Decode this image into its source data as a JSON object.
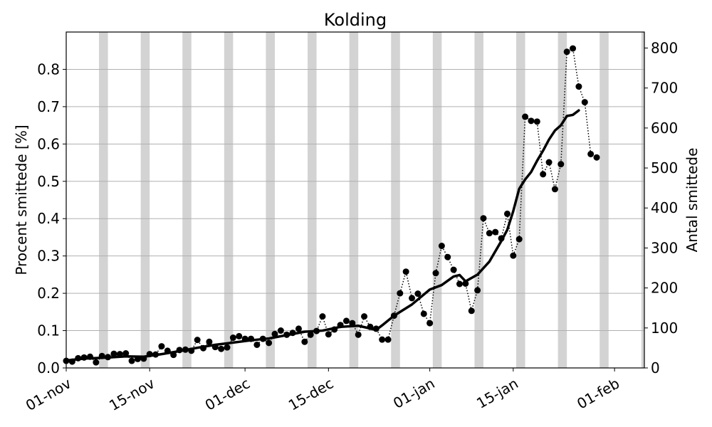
{
  "chart_data": {
    "type": "line",
    "title": "Kolding",
    "ylabel": "Procent smittede [%]",
    "y2label": "Antal smittede",
    "grid": true,
    "weekend_shading": true,
    "colors": {
      "line": "#000000",
      "weekend": "#d3d3d3",
      "grid": "#b0b0b0"
    },
    "x_start": "2020-11-01",
    "x_end": "2021-02-06",
    "ylim": [
      0,
      0.9
    ],
    "y2lim": [
      0,
      840
    ],
    "yticks": [
      "0.0",
      "0.1",
      "0.2",
      "0.3",
      "0.4",
      "0.5",
      "0.6",
      "0.7",
      "0.8"
    ],
    "y2ticks": [
      "0",
      "100",
      "200",
      "300",
      "400",
      "500",
      "600",
      "700",
      "800"
    ],
    "xticks": [
      {
        "date": "2020-11-01",
        "label": "01-nov"
      },
      {
        "date": "2020-11-15",
        "label": "15-nov"
      },
      {
        "date": "2020-12-01",
        "label": "01-dec"
      },
      {
        "date": "2020-12-15",
        "label": "15-dec"
      },
      {
        "date": "2021-01-01",
        "label": "01-jan"
      },
      {
        "date": "2021-01-15",
        "label": "15-jan"
      },
      {
        "date": "2021-02-01",
        "label": "01-feb"
      }
    ],
    "weekends": [
      "2020-11-07",
      "2020-11-14",
      "2020-11-21",
      "2020-11-28",
      "2020-12-05",
      "2020-12-12",
      "2020-12-19",
      "2020-12-26",
      "2021-01-02",
      "2021-01-09",
      "2021-01-16",
      "2021-01-23",
      "2021-01-30",
      "2021-02-06"
    ],
    "series": [
      {
        "style": "dotted-markers",
        "points": [
          [
            "2020-11-01",
            0.019
          ],
          [
            "2020-11-02",
            0.017
          ],
          [
            "2020-11-03",
            0.026
          ],
          [
            "2020-11-04",
            0.028
          ],
          [
            "2020-11-05",
            0.03
          ],
          [
            "2020-11-06",
            0.015
          ],
          [
            "2020-11-07",
            0.032
          ],
          [
            "2020-11-08",
            0.029
          ],
          [
            "2020-11-09",
            0.038
          ],
          [
            "2020-11-10",
            0.037
          ],
          [
            "2020-11-11",
            0.039
          ],
          [
            "2020-11-12",
            0.019
          ],
          [
            "2020-11-13",
            0.024
          ],
          [
            "2020-11-14",
            0.025
          ],
          [
            "2020-11-15",
            0.037
          ],
          [
            "2020-11-16",
            0.036
          ],
          [
            "2020-11-17",
            0.058
          ],
          [
            "2020-11-18",
            0.046
          ],
          [
            "2020-11-19",
            0.035
          ],
          [
            "2020-11-20",
            0.048
          ],
          [
            "2020-11-21",
            0.049
          ],
          [
            "2020-11-22",
            0.046
          ],
          [
            "2020-11-23",
            0.075
          ],
          [
            "2020-11-24",
            0.053
          ],
          [
            "2020-11-25",
            0.07
          ],
          [
            "2020-11-26",
            0.056
          ],
          [
            "2020-11-27",
            0.051
          ],
          [
            "2020-11-28",
            0.055
          ],
          [
            "2020-11-29",
            0.081
          ],
          [
            "2020-11-30",
            0.085
          ],
          [
            "2020-12-01",
            0.078
          ],
          [
            "2020-12-02",
            0.078
          ],
          [
            "2020-12-03",
            0.062
          ],
          [
            "2020-12-04",
            0.078
          ],
          [
            "2020-12-05",
            0.067
          ],
          [
            "2020-12-06",
            0.091
          ],
          [
            "2020-12-07",
            0.1
          ],
          [
            "2020-12-08",
            0.089
          ],
          [
            "2020-12-09",
            0.094
          ],
          [
            "2020-12-10",
            0.105
          ],
          [
            "2020-12-11",
            0.07
          ],
          [
            "2020-12-12",
            0.089
          ],
          [
            "2020-12-13",
            0.099
          ],
          [
            "2020-12-14",
            0.138
          ],
          [
            "2020-12-15",
            0.09
          ],
          [
            "2020-12-16",
            0.103
          ],
          [
            "2020-12-17",
            0.115
          ],
          [
            "2020-12-18",
            0.126
          ],
          [
            "2020-12-19",
            0.12
          ],
          [
            "2020-12-20",
            0.089
          ],
          [
            "2020-12-21",
            0.138
          ],
          [
            "2020-12-22",
            0.11
          ],
          [
            "2020-12-23",
            0.105
          ],
          [
            "2020-12-24",
            0.076
          ],
          [
            "2020-12-25",
            0.076
          ],
          [
            "2020-12-26",
            0.14
          ],
          [
            "2020-12-27",
            0.2
          ],
          [
            "2020-12-28",
            0.258
          ],
          [
            "2020-12-29",
            0.187
          ],
          [
            "2020-12-30",
            0.199
          ],
          [
            "2020-12-31",
            0.145
          ],
          [
            "2021-01-01",
            0.12
          ],
          [
            "2021-01-02",
            0.254
          ],
          [
            "2021-01-03",
            0.327
          ],
          [
            "2021-01-04",
            0.297
          ],
          [
            "2021-01-05",
            0.263
          ],
          [
            "2021-01-06",
            0.225
          ],
          [
            "2021-01-07",
            0.226
          ],
          [
            "2021-01-08",
            0.153
          ],
          [
            "2021-01-09",
            0.208
          ],
          [
            "2021-01-10",
            0.401
          ],
          [
            "2021-01-11",
            0.361
          ],
          [
            "2021-01-12",
            0.364
          ],
          [
            "2021-01-13",
            0.347
          ],
          [
            "2021-01-14",
            0.413
          ],
          [
            "2021-01-15",
            0.301
          ],
          [
            "2021-01-16",
            0.345
          ],
          [
            "2021-01-17",
            0.673
          ],
          [
            "2021-01-18",
            0.662
          ],
          [
            "2021-01-19",
            0.66
          ],
          [
            "2021-01-20",
            0.519
          ],
          [
            "2021-01-21",
            0.551
          ],
          [
            "2021-01-22",
            0.479
          ],
          [
            "2021-01-23",
            0.546
          ],
          [
            "2021-01-24",
            0.847
          ],
          [
            "2021-01-25",
            0.856
          ],
          [
            "2021-01-26",
            0.754
          ],
          [
            "2021-01-27",
            0.712
          ],
          [
            "2021-01-28",
            0.573
          ],
          [
            "2021-01-29",
            0.564
          ]
        ]
      },
      {
        "style": "thick-line",
        "points": [
          [
            "2020-11-01",
            0.02
          ],
          [
            "2020-11-04",
            0.025
          ],
          [
            "2020-11-08",
            0.028
          ],
          [
            "2020-11-11",
            0.031
          ],
          [
            "2020-11-14",
            0.03
          ],
          [
            "2020-11-17",
            0.037
          ],
          [
            "2020-11-20",
            0.045
          ],
          [
            "2020-11-23",
            0.054
          ],
          [
            "2020-11-26",
            0.062
          ],
          [
            "2020-11-29",
            0.068
          ],
          [
            "2020-12-02",
            0.074
          ],
          [
            "2020-12-05",
            0.079
          ],
          [
            "2020-12-08",
            0.088
          ],
          [
            "2020-12-11",
            0.097
          ],
          [
            "2020-12-14",
            0.1
          ],
          [
            "2020-12-17",
            0.11
          ],
          [
            "2020-12-20",
            0.113
          ],
          [
            "2020-12-23",
            0.102
          ],
          [
            "2020-12-24",
            0.114
          ],
          [
            "2020-12-26",
            0.14
          ],
          [
            "2020-12-29",
            0.17
          ],
          [
            "2021-01-01",
            0.21
          ],
          [
            "2021-01-03",
            0.222
          ],
          [
            "2021-01-05",
            0.245
          ],
          [
            "2021-01-06",
            0.249
          ],
          [
            "2021-01-07",
            0.232
          ],
          [
            "2021-01-09",
            0.25
          ],
          [
            "2021-01-11",
            0.285
          ],
          [
            "2021-01-13",
            0.34
          ],
          [
            "2021-01-14",
            0.37
          ],
          [
            "2021-01-15",
            0.42
          ],
          [
            "2021-01-16",
            0.48
          ],
          [
            "2021-01-17",
            0.505
          ],
          [
            "2021-01-18",
            0.525
          ],
          [
            "2021-01-19",
            0.555
          ],
          [
            "2021-01-20",
            0.582
          ],
          [
            "2021-01-21",
            0.612
          ],
          [
            "2021-01-22",
            0.636
          ],
          [
            "2021-01-23",
            0.65
          ],
          [
            "2021-01-24",
            0.675
          ],
          [
            "2021-01-25",
            0.678
          ],
          [
            "2021-01-26",
            0.69
          ]
        ]
      }
    ]
  }
}
